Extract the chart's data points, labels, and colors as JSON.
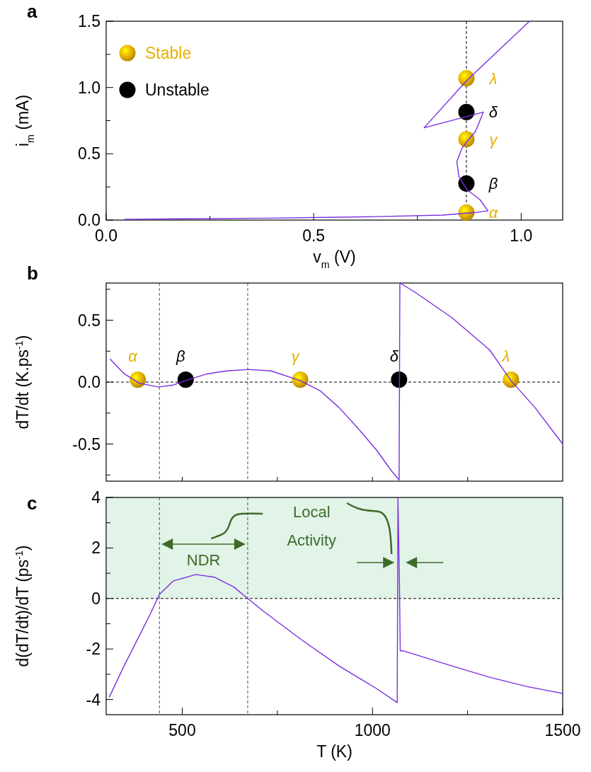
{
  "chart_data": [
    {
      "type": "line",
      "title": "a",
      "xlabel": "v$_{m}$ (V)",
      "ylabel": "i$_{m}$ (mA)",
      "xlim": [
        0,
        1.1
      ],
      "ylim": [
        0,
        1.5
      ],
      "xticks": [
        {
          "value": 0,
          "label": "0.0"
        },
        {
          "value": 0.25,
          "label": null
        },
        {
          "value": 0.5,
          "label": "0.5"
        },
        {
          "value": 0.75,
          "label": null
        },
        {
          "value": 1,
          "label": "1.0"
        }
      ],
      "yticks": [
        {
          "value": 0,
          "label": "0.0"
        },
        {
          "value": 0.25,
          "label": null
        },
        {
          "value": 0.5,
          "label": "0.5"
        },
        {
          "value": 0.75,
          "label": null
        },
        {
          "value": 1,
          "label": "1.0"
        },
        {
          "value": 1.25,
          "label": null
        },
        {
          "value": 1.5,
          "label": "1.5"
        }
      ],
      "legend": "top left",
      "ref_lines": [
        {
          "axis": "x",
          "value": 0.868,
          "color": "#000000",
          "line_style": "dashed"
        }
      ],
      "series": [
        {
          "color": "#7b2fe0",
          "x": [
            0.044,
            0.38,
            0.65,
            0.81,
            0.89,
            0.92,
            0.9,
            0.87,
            0.85,
            0.845,
            0.857,
            0.87,
            0.89,
            0.909,
            0.766,
            0.868,
            1.02
          ],
          "values": [
            0.006,
            0.014,
            0.026,
            0.037,
            0.057,
            0.07,
            0.156,
            0.227,
            0.327,
            0.44,
            0.54,
            0.595,
            0.67,
            0.815,
            0.696,
            1.05,
            1.5
          ]
        },
        {
          "type": "scatter",
          "name": "Stable",
          "color": "#e6b000",
          "x": [
            0.868,
            0.868,
            0.868
          ],
          "values": [
            0.057,
            0.61,
            1.07
          ],
          "value_labels": [
            "α",
            "γ",
            "λ"
          ]
        },
        {
          "type": "scatter",
          "name": "Unstable",
          "color": "#000000",
          "x": [
            0.868,
            0.868
          ],
          "values": [
            0.276,
            0.815
          ],
          "value_labels": [
            "β",
            "δ"
          ]
        }
      ]
    },
    {
      "type": "line",
      "title": "b",
      "ylabel": "dT/dt (K.ps$^{-1}$)",
      "xlim": [
        300,
        1500
      ],
      "ylim": [
        -0.8,
        0.8
      ],
      "tick_labels": "y",
      "xticks": [
        {
          "value": 500,
          "label": null
        },
        {
          "value": 750,
          "label": null
        },
        {
          "value": 1000,
          "label": null
        },
        {
          "value": 1250,
          "label": null
        }
      ],
      "yticks": [
        {
          "value": -0.75,
          "label": null
        },
        {
          "value": -0.5,
          "label": "-0.5"
        },
        {
          "value": -0.25,
          "label": null
        },
        {
          "value": 0,
          "label": "0.0"
        },
        {
          "value": 0.25,
          "label": null
        },
        {
          "value": 0.5,
          "label": "0.5"
        },
        {
          "value": 0.75,
          "label": null
        }
      ],
      "ref_lines": [
        {
          "axis": "y",
          "value": 0,
          "color": "#000000",
          "line_style": "dashed"
        },
        {
          "axis": "x",
          "value": 440,
          "color": "#3a5f2a",
          "line_style": "dashed"
        },
        {
          "axis": "x",
          "value": 672,
          "color": "#3a5f2a",
          "line_style": "dashed"
        }
      ],
      "series": [
        {
          "color": "#7b2fe0",
          "x": [
            310,
            348,
            387,
            437,
            476,
            509,
            565,
            615,
            674,
            734,
            810,
            862,
            912,
            961,
            1011,
            1050,
            1070,
            1072,
            1110,
            1209,
            1308,
            1364,
            1427,
            1500
          ],
          "values": [
            0.187,
            0.066,
            -0.009,
            -0.039,
            -0.024,
            0.012,
            0.066,
            0.09,
            0.102,
            0.09,
            0.012,
            -0.069,
            -0.205,
            -0.37,
            -0.55,
            -0.717,
            -0.79,
            0.8,
            0.73,
            0.52,
            0.26,
            0.012,
            -0.205,
            -0.5
          ]
        },
        {
          "type": "scatter",
          "color": "#e6b000",
          "x": [
            383,
            810,
            1364
          ],
          "values": [
            0.02,
            0.02,
            0.02
          ],
          "value_labels": [
            "α",
            "γ",
            "λ"
          ]
        },
        {
          "type": "scatter",
          "color": "#000000",
          "x": [
            509,
            1070
          ],
          "values": [
            0.02,
            0.02
          ],
          "value_labels": [
            "β",
            "δ"
          ]
        }
      ]
    },
    {
      "type": "line",
      "title": "c",
      "xlabel": "T (K)",
      "ylabel": "d(dT/dt)/dT (ps$^{-1}$)",
      "xlim": [
        300,
        1500
      ],
      "ylim": [
        -4.6,
        4
      ],
      "xticks": [
        500,
        {
          "value": 750,
          "label": null
        },
        1000,
        {
          "value": 1250,
          "label": null
        },
        1500
      ],
      "yticks": [
        -4,
        {
          "value": -3,
          "label": null
        },
        -2,
        {
          "value": -1,
          "label": null
        },
        0,
        {
          "value": 1,
          "label": null
        },
        2,
        {
          "value": 3,
          "label": null
        },
        4
      ],
      "bands": [
        {
          "axis": "y",
          "from": 0,
          "to": 4,
          "color": "#e2f3e8"
        }
      ],
      "ref_lines": [
        {
          "axis": "y",
          "value": 0,
          "color": "#000000",
          "line_style": "dashed"
        },
        {
          "axis": "x",
          "value": 440,
          "color": "#3a5f2a",
          "line_style": "dashed"
        },
        {
          "axis": "x",
          "value": 672,
          "color": "#3a5f2a",
          "line_style": "dashed"
        }
      ],
      "annotations": [
        "NDR",
        "Local Activity"
      ],
      "series": [
        {
          "color": "#7b2fe0",
          "x": [
            308,
            347,
            387,
            417,
            440,
            476,
            536,
            585,
            635,
            672,
            714,
            813,
            912,
            1011,
            1065,
            1067,
            1071,
            1073,
            1080,
            1209,
            1308,
            1407,
            1500
          ],
          "values": [
            -3.91,
            -2.67,
            -1.48,
            -0.58,
            0.16,
            0.69,
            0.95,
            0.84,
            0.46,
            0,
            -0.51,
            -1.63,
            -2.67,
            -3.57,
            -4.12,
            4,
            0.45,
            -2.07,
            -2.07,
            -2.67,
            -3.12,
            -3.49,
            -3.76
          ]
        }
      ]
    }
  ]
}
